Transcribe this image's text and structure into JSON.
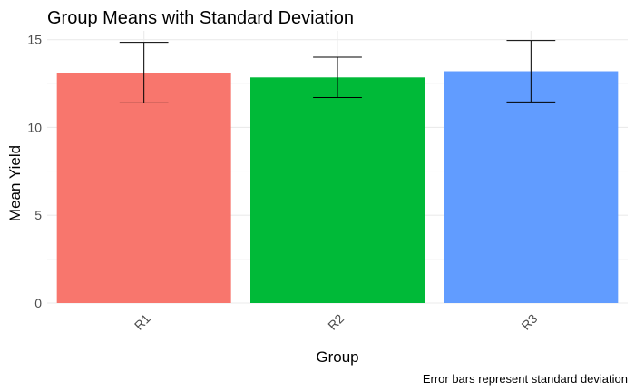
{
  "chart_data": {
    "type": "bar",
    "title": "Group Means with Standard Deviation",
    "xlabel": "Group",
    "ylabel": "Mean Yield",
    "caption": "Error bars represent standard deviation",
    "categories": [
      "R1",
      "R2",
      "R3"
    ],
    "values": [
      13.1,
      12.85,
      13.2
    ],
    "error_low": [
      11.4,
      11.7,
      11.45
    ],
    "error_high": [
      14.85,
      14.0,
      14.95
    ],
    "colors": [
      "#F8766D",
      "#00BA38",
      "#619CFF"
    ],
    "ylim": [
      0,
      15.5
    ],
    "yticks": [
      0,
      5,
      10,
      15
    ],
    "grid": true,
    "legend": "none"
  }
}
